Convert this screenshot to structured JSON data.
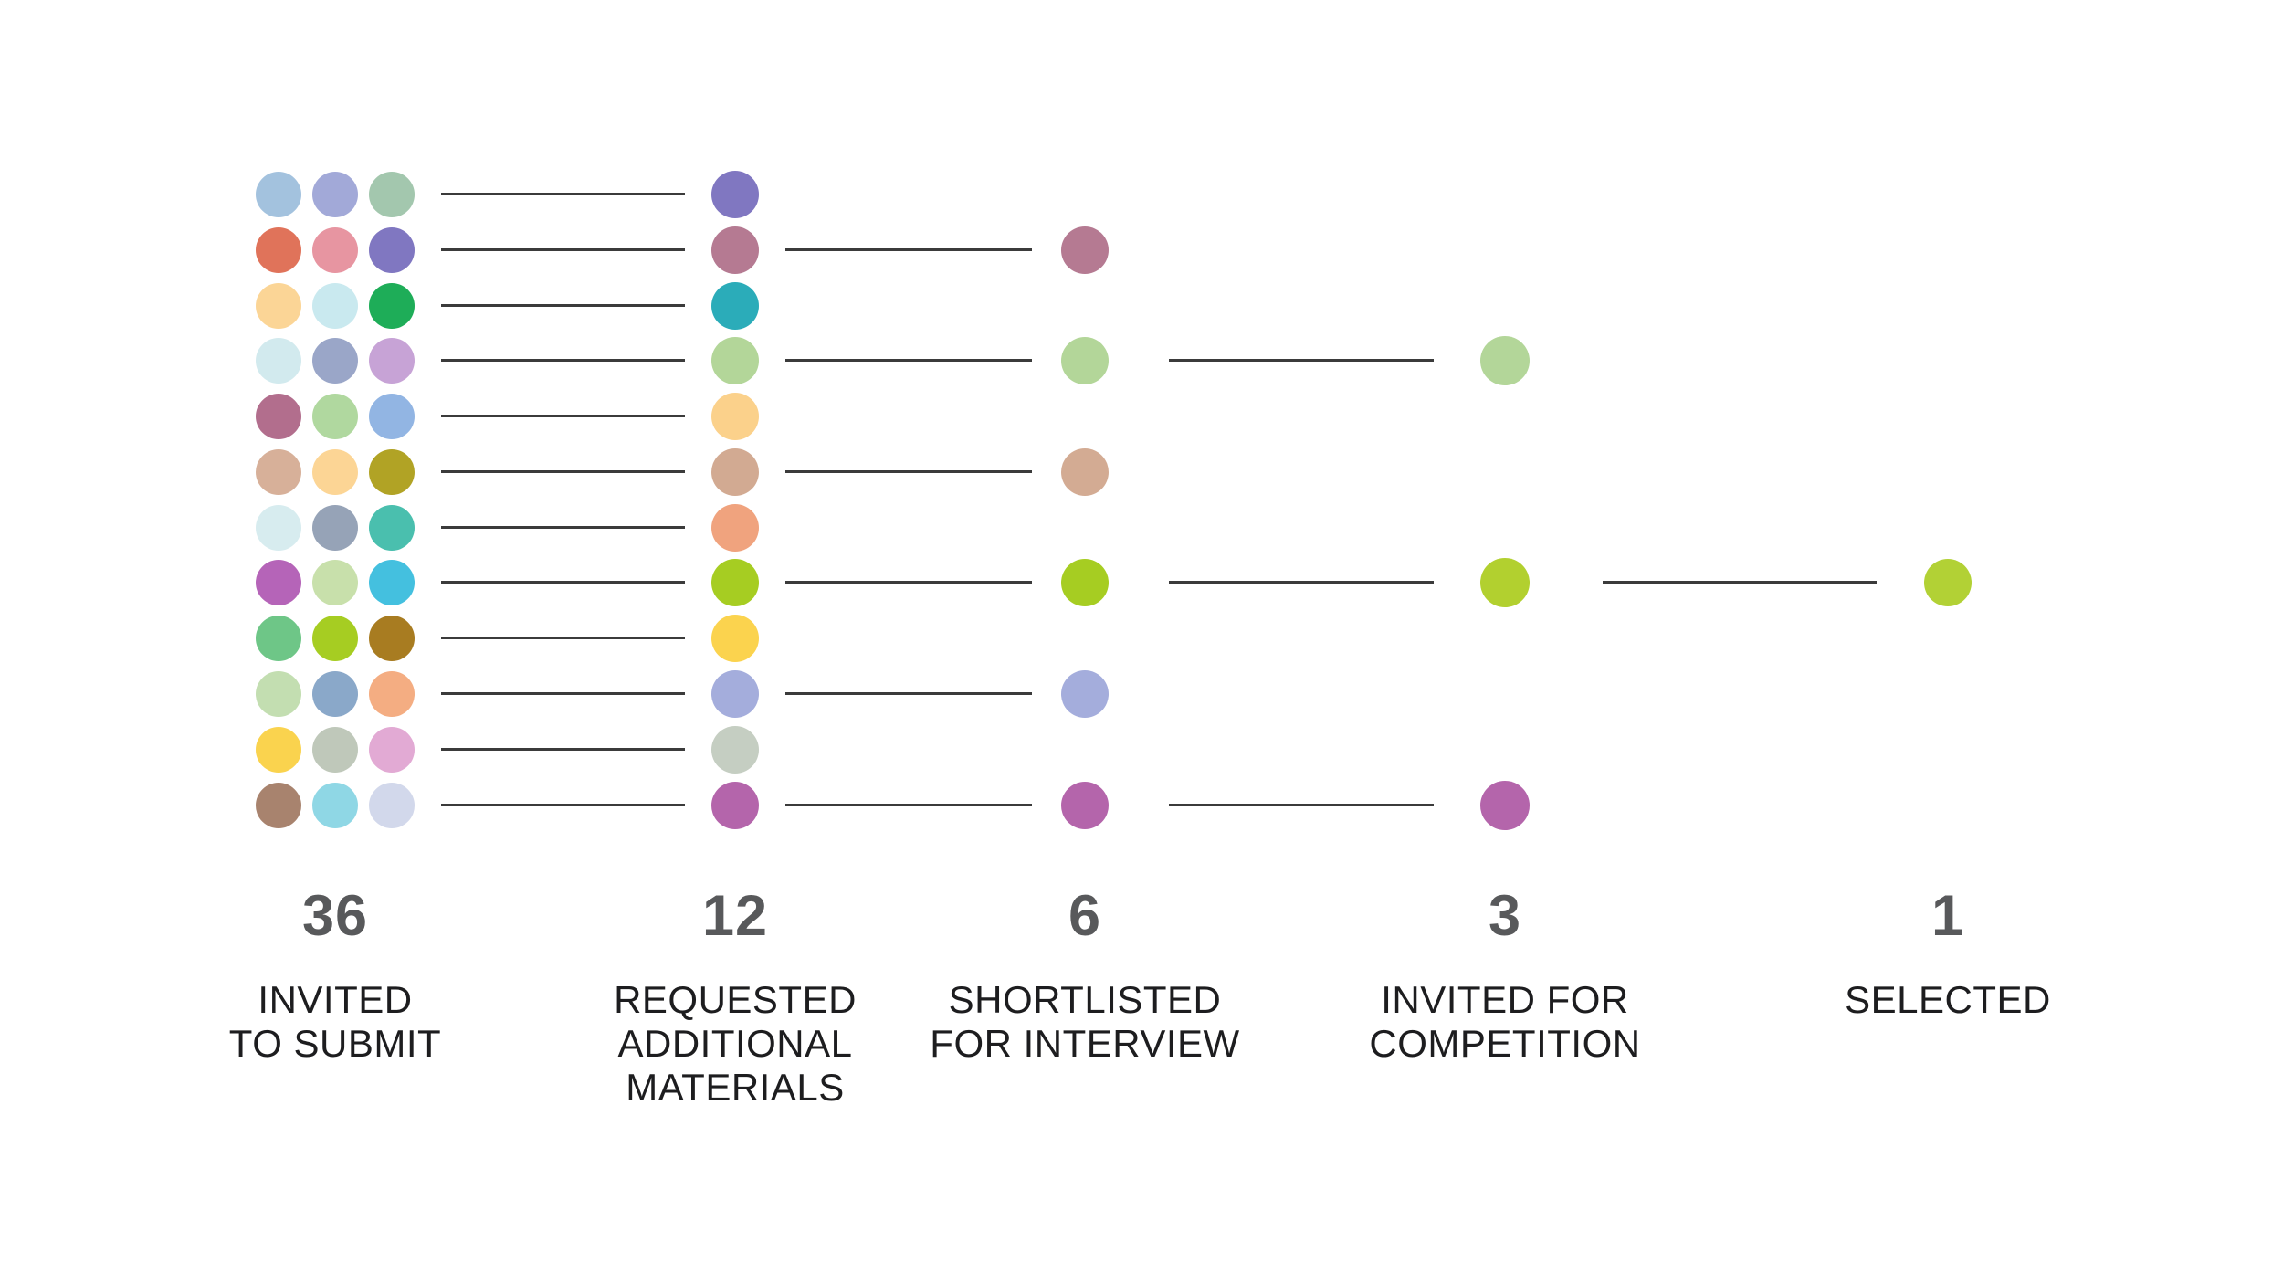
{
  "chart_data": {
    "type": "funnel",
    "description_rows": 12,
    "stages": [
      {
        "value": 36,
        "count": "36",
        "label_lines": [
          "INVITED",
          "TO SUBMIT"
        ],
        "dot_grid": [
          [
            "#a3c2de",
            "#a2a9d8",
            "#a3c7ae"
          ],
          [
            "#e0735a",
            "#e795a1",
            "#8077c1"
          ],
          [
            "#fbd596",
            "#c9e9ef",
            "#1ead58"
          ],
          [
            "#d2eaee",
            "#9aa6c8",
            "#c7a3d6"
          ],
          [
            "#b26e8d",
            "#b0d89f",
            "#92b5e3"
          ],
          [
            "#d7b099",
            "#fcd595",
            "#b1a325"
          ],
          [
            "#d7ecef",
            "#96a3b7",
            "#4abfae"
          ],
          [
            "#b564b8",
            "#c8e0ab",
            "#44c0df"
          ],
          [
            "#6ec687",
            "#a6cd22",
            "#a87c21"
          ],
          [
            "#c3deb1",
            "#8aa8c9",
            "#f4ad82"
          ],
          [
            "#fad34e",
            "#bfc8ba",
            "#e2aad4"
          ],
          [
            "#a8836e",
            "#8fd7e5",
            "#d2d8eb"
          ]
        ]
      },
      {
        "value": 12,
        "count": "12",
        "label_lines": [
          "REQUESTED",
          "ADDITIONAL",
          "MATERIALS"
        ],
        "dots": [
          {
            "row": 1,
            "color": "#8077c1"
          },
          {
            "row": 2,
            "color": "#b57a92"
          },
          {
            "row": 3,
            "color": "#2bacb9"
          },
          {
            "row": 4,
            "color": "#b3d699"
          },
          {
            "row": 5,
            "color": "#fbd18b"
          },
          {
            "row": 6,
            "color": "#d2aa92"
          },
          {
            "row": 7,
            "color": "#f0a37e"
          },
          {
            "row": 8,
            "color": "#a6cd22"
          },
          {
            "row": 9,
            "color": "#fbd34e"
          },
          {
            "row": 10,
            "color": "#a4addc"
          },
          {
            "row": 11,
            "color": "#c5cec2"
          },
          {
            "row": 12,
            "color": "#b465ab"
          }
        ]
      },
      {
        "value": 6,
        "count": "6",
        "label_lines": [
          "SHORTLISTED",
          "FOR INTERVIEW"
        ],
        "dots": [
          {
            "row": 2,
            "color": "#b57a92"
          },
          {
            "row": 4,
            "color": "#b3d699"
          },
          {
            "row": 6,
            "color": "#d3ab93"
          },
          {
            "row": 8,
            "color": "#a6cd22"
          },
          {
            "row": 10,
            "color": "#a4addc"
          },
          {
            "row": 12,
            "color": "#b465ab"
          }
        ]
      },
      {
        "value": 3,
        "count": "3",
        "label_lines": [
          "INVITED FOR",
          "COMPETITION"
        ],
        "dots": [
          {
            "row": 4,
            "color": "#b3d699"
          },
          {
            "row": 8,
            "color": "#b2d02f"
          },
          {
            "row": 12,
            "color": "#b465ab"
          }
        ]
      },
      {
        "value": 1,
        "count": "1",
        "label_lines": [
          "SELECTED"
        ],
        "dots": [
          {
            "row": 8,
            "color": "#b2d135"
          }
        ]
      }
    ],
    "connectors": [
      {
        "from": "INVITED TO SUBMIT",
        "to": "REQUESTED ADDITIONAL MATERIALS",
        "rows": [
          1,
          2,
          3,
          4,
          5,
          6,
          7,
          8,
          9,
          10,
          11,
          12
        ]
      },
      {
        "from": "REQUESTED ADDITIONAL MATERIALS",
        "to": "SHORTLISTED FOR INTERVIEW",
        "rows": [
          2,
          4,
          6,
          8,
          10,
          12
        ]
      },
      {
        "from": "SHORTLISTED FOR INTERVIEW",
        "to": "INVITED FOR COMPETITION",
        "rows": [
          4,
          8,
          12
        ]
      },
      {
        "from": "INVITED FOR COMPETITION",
        "to": "SELECTED",
        "rows": [
          8
        ]
      }
    ],
    "colors": {
      "count_text": "#58595b",
      "label_text": "#1d1d1f",
      "connector_line": "#3b3b3b",
      "background": "#ffffff"
    }
  }
}
